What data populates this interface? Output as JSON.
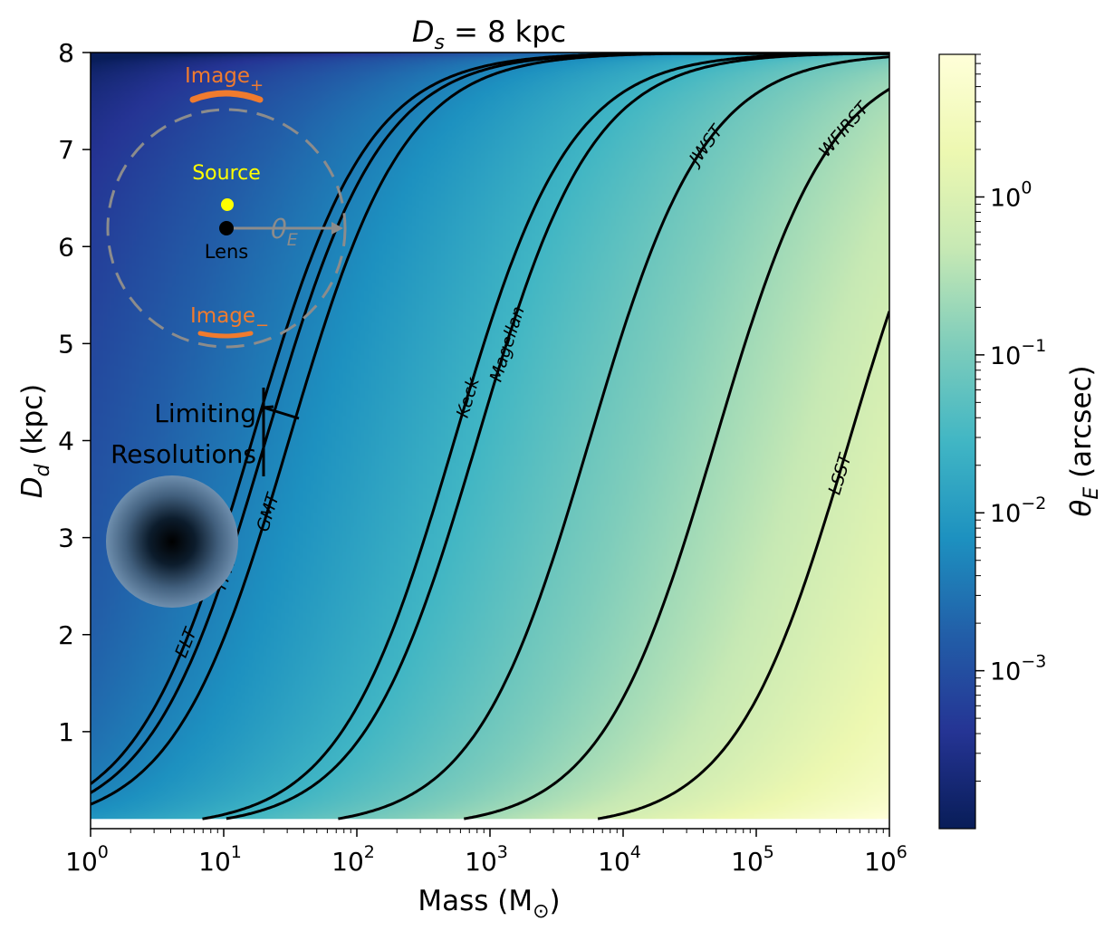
{
  "chart_data": {
    "type": "heatmap",
    "title": "D_s = 8 kpc",
    "title_parts": {
      "var": "D",
      "sub": "s",
      "rest": " = 8 kpc"
    },
    "xlabel": "Mass (M",
    "xlabel_sun": "⊙",
    "xlabel_close": ")",
    "ylabel_var": "D",
    "ylabel_sub": "d",
    "ylabel_rest": " (kpc)",
    "x_scale": "log",
    "xlim": [
      1,
      1000000
    ],
    "ylim": [
      0.1,
      8
    ],
    "x_ticks": [
      {
        "value": 1,
        "base": "10",
        "exp": "0"
      },
      {
        "value": 10,
        "base": "10",
        "exp": "1"
      },
      {
        "value": 100,
        "base": "10",
        "exp": "2"
      },
      {
        "value": 1000,
        "base": "10",
        "exp": "3"
      },
      {
        "value": 10000,
        "base": "10",
        "exp": "4"
      },
      {
        "value": 100000,
        "base": "10",
        "exp": "5"
      },
      {
        "value": 1000000,
        "base": "10",
        "exp": "6"
      }
    ],
    "y_ticks": [
      {
        "value": 1,
        "label": "1"
      },
      {
        "value": 2,
        "label": "2"
      },
      {
        "value": 3,
        "label": "3"
      },
      {
        "value": 4,
        "label": "4"
      },
      {
        "value": 5,
        "label": "5"
      },
      {
        "value": 6,
        "label": "6"
      },
      {
        "value": 7,
        "label": "7"
      },
      {
        "value": 8,
        "label": "8"
      }
    ],
    "colorbar": {
      "label_var": "θ",
      "label_sub": "E",
      "label_rest": " (arcsec)",
      "scale": "log",
      "range": [
        0.0001,
        8
      ],
      "colormap": "YlGnBu",
      "ticks": [
        {
          "value": 1,
          "base": "10",
          "exp": "0"
        },
        {
          "value": 0.1,
          "base": "10",
          "exp": "−1"
        },
        {
          "value": 0.01,
          "base": "10",
          "exp": "−2"
        },
        {
          "value": 0.001,
          "base": "10",
          "exp": "−3"
        }
      ]
    },
    "contours": [
      {
        "name": "ELT",
        "theta_arcsec": 0.004
      },
      {
        "name": "TMT",
        "theta_arcsec": 0.0045
      },
      {
        "name": "GMT",
        "theta_arcsec": 0.0055
      },
      {
        "name": "Keck",
        "theta_arcsec": 0.023
      },
      {
        "name": "Magellan",
        "theta_arcsec": 0.028
      },
      {
        "name": "JWST",
        "theta_arcsec": 0.074
      },
      {
        "name": "WFIRST",
        "theta_arcsec": 0.22
      },
      {
        "name": "LSST",
        "theta_arcsec": 0.7
      }
    ],
    "annotations": {
      "limiting_line1": "Limiting",
      "limiting_line2": "Resolutions",
      "source_label": "Source",
      "lens_label": "Lens",
      "image_plus_base": "Image",
      "image_plus_sub": "+",
      "image_minus_base": "Image",
      "image_minus_sub": "−",
      "theta_var": "θ",
      "theta_sub": "E"
    },
    "colors": {
      "contour": "#000000",
      "image_arc": "#f07b2e",
      "source_dot": "#ffff00",
      "lens_dot": "#000000",
      "einstein_ring": "#8c8c8c",
      "annotation_text": "#000000"
    }
  }
}
